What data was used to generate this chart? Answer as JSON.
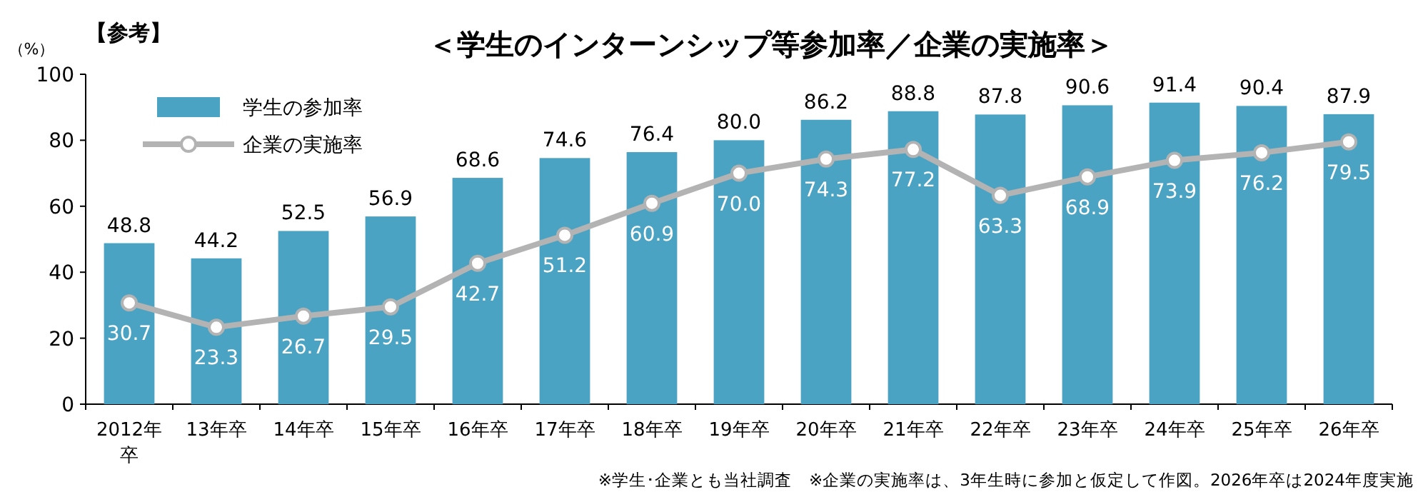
{
  "chart_data": {
    "type": "bar",
    "title": "＜学生のインターンシップ等参加率／企業の実施率＞",
    "ylabel": "（%）",
    "annotations": [
      "【参考】",
      "※学生･企業とも当社調査　※企業の実施率は、3年生時に参加と仮定して作図。2026年卒は2024年度実施"
    ],
    "categories": [
      "2012年卒",
      "13年卒",
      "14年卒",
      "15年卒",
      "16年卒",
      "17年卒",
      "18年卒",
      "19年卒",
      "20年卒",
      "21年卒",
      "22年卒",
      "23年卒",
      "24年卒",
      "25年卒",
      "26年卒"
    ],
    "series": [
      {
        "name": "学生の参加率",
        "color": "#4ba3c3",
        "values": [
          48.8,
          44.2,
          52.5,
          56.9,
          68.6,
          74.6,
          76.4,
          80.0,
          86.2,
          88.8,
          87.8,
          90.6,
          91.4,
          90.4,
          87.9
        ],
        "value_labels": [
          "48.8",
          "44.2",
          "52.5",
          "56.9",
          "68.6",
          "74.6",
          "76.4",
          "80.0",
          "86.2",
          "88.8",
          "87.8",
          "90.6",
          "91.4",
          "90.4",
          "87.9"
        ]
      },
      {
        "name": "企業の実施率",
        "type": "line",
        "color": "#b3b3b3",
        "values": [
          30.7,
          23.3,
          26.7,
          29.5,
          42.7,
          51.2,
          60.9,
          70.0,
          74.3,
          77.2,
          63.3,
          68.9,
          73.9,
          76.2,
          79.5
        ],
        "value_labels": [
          "30.7",
          "23.3",
          "26.7",
          "29.5",
          "42.7",
          "51.2",
          "60.9",
          "70.0",
          "74.3",
          "77.2",
          "63.3",
          "68.9",
          "73.9",
          "76.2",
          "79.5"
        ]
      }
    ],
    "ylim": [
      0,
      100
    ],
    "yticks": [
      0,
      20,
      40,
      60,
      80,
      100
    ],
    "grid": false,
    "legend": "top left",
    "marker": "circle",
    "line_style": "solid"
  }
}
